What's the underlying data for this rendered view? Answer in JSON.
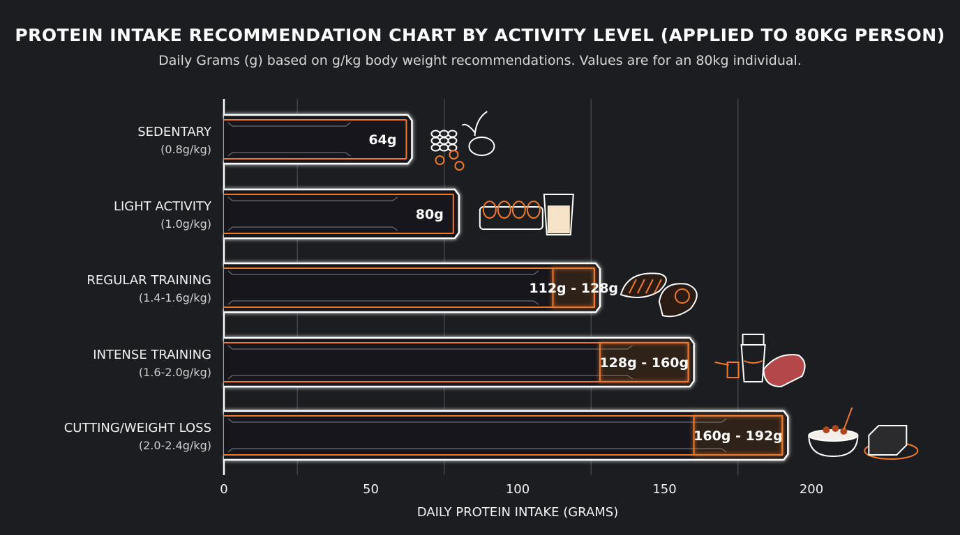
{
  "chart_data": {
    "type": "bar",
    "orientation": "horizontal",
    "title": "PROTEIN INTAKE RECOMMENDATION CHART BY ACTIVITY LEVEL (APPLIED TO 80KG PERSON)",
    "subtitle": "Daily Grams (g) based on g/kg body weight recommendations. Values are for an 80kg individual.",
    "xlabel": "DAILY PROTEIN INTAKE (GRAMS)",
    "ylabel": "",
    "xlim": [
      0,
      200
    ],
    "xticks": [
      "0",
      "50",
      "100",
      "150",
      "200"
    ],
    "grid": true,
    "categories": [
      {
        "name": "SEDENTARY",
        "rate": "(0.8g/kg)",
        "low": 64,
        "high": 64,
        "label": "64g",
        "icon": "beans-lentils-icon"
      },
      {
        "name": "LIGHT ACTIVITY",
        "rate": "(1.0g/kg)",
        "low": 80,
        "high": 80,
        "label": "80g",
        "icon": "eggs-milk-icon"
      },
      {
        "name": "REGULAR TRAINING",
        "rate": "(1.4-1.6g/kg)",
        "low": 112,
        "high": 128,
        "label": "112g - 128g",
        "icon": "chicken-salmon-icon"
      },
      {
        "name": "INTENSE TRAINING",
        "rate": "(1.6-2.0g/kg)",
        "low": 128,
        "high": 160,
        "label": "128g - 160g",
        "icon": "shaker-beef-icon"
      },
      {
        "name": "CUTTING/WEIGHT LOSS",
        "rate": "(2.0-2.4g/kg)",
        "low": 160,
        "high": 192,
        "label": "160g - 192g",
        "icon": "yogurt-tofu-icon"
      }
    ],
    "colors": {
      "accent": "#f07a2a",
      "bar_outline": "#ffffff",
      "background": "#1b1d21",
      "grid": "#4a4d52"
    }
  }
}
